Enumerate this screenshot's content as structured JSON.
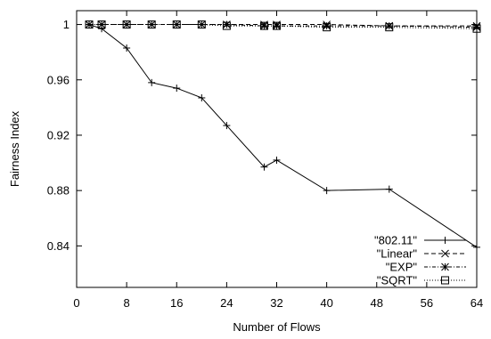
{
  "chart_data": {
    "type": "line",
    "xlabel": "Number of Flows",
    "ylabel": "Fairness Index",
    "xlim": [
      0,
      64
    ],
    "ylim": [
      0.81,
      1.01
    ],
    "xticks": [
      0,
      8,
      16,
      24,
      32,
      40,
      48,
      56,
      64
    ],
    "yticks": [
      0.84,
      0.88,
      0.92,
      0.96,
      1
    ],
    "ytick_labels": [
      "0.84",
      "0.88",
      "0.92",
      "0.96",
      "1"
    ],
    "grid": false,
    "legend_position": "bottom-right",
    "series": [
      {
        "name": "\"802.11\"",
        "marker": "plus",
        "dash": "solid",
        "x": [
          2,
          4,
          8,
          12,
          16,
          20,
          24,
          30,
          32,
          40,
          50,
          64
        ],
        "y": [
          1.0,
          0.997,
          0.983,
          0.958,
          0.954,
          0.947,
          0.927,
          0.897,
          0.902,
          0.88,
          0.881,
          0.839
        ]
      },
      {
        "name": "\"Linear\"",
        "marker": "cross",
        "dash": "dashed",
        "x": [
          2,
          4,
          8,
          12,
          16,
          20,
          24,
          30,
          32,
          40,
          50,
          64
        ],
        "y": [
          1.0,
          1.0,
          1.0,
          1.0,
          1.0,
          1.0,
          1.0,
          1.0,
          1.0,
          1.0,
          0.999,
          0.999
        ]
      },
      {
        "name": "\"EXP\"",
        "marker": "star",
        "dash": "dotdash",
        "x": [
          2,
          4,
          8,
          12,
          16,
          20,
          24,
          30,
          32,
          40,
          50,
          64
        ],
        "y": [
          1.0,
          1.0,
          1.0,
          1.0,
          1.0,
          1.0,
          1.0,
          0.999,
          0.999,
          0.999,
          0.999,
          0.998
        ]
      },
      {
        "name": "\"SQRT\"",
        "marker": "square",
        "dash": "dotted",
        "x": [
          2,
          4,
          8,
          12,
          16,
          20,
          24,
          30,
          32,
          40,
          50,
          64
        ],
        "y": [
          1.0,
          1.0,
          1.0,
          1.0,
          1.0,
          1.0,
          0.999,
          0.999,
          0.999,
          0.998,
          0.998,
          0.997
        ]
      }
    ]
  }
}
